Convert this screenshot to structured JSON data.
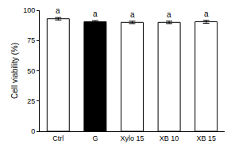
{
  "chart_data": {
    "type": "bar",
    "y_label": "Cell viability (%)",
    "categories": [
      "Ctrl",
      "G",
      "Xylo 15",
      "XB 10",
      "XB 15"
    ],
    "values": [
      93,
      90.5,
      90,
      90,
      90.5
    ],
    "errors": [
      1,
      1,
      1,
      1,
      1.2
    ],
    "colors": [
      "#ffffff",
      "#000000",
      "#ffffff",
      "#ffffff",
      "#ffffff"
    ],
    "annotations": [
      {
        "text": "a",
        "category": "Ctrl"
      },
      {
        "text": "a",
        "category": "G"
      },
      {
        "text": "a",
        "category": "Xylo 15"
      },
      {
        "text": "a",
        "category": "XB 10"
      },
      {
        "text": "a",
        "category": "XB 15"
      }
    ],
    "ylim": [
      0,
      100
    ],
    "yticks": [
      0,
      25,
      50,
      75,
      100
    ],
    "grid": false
  }
}
